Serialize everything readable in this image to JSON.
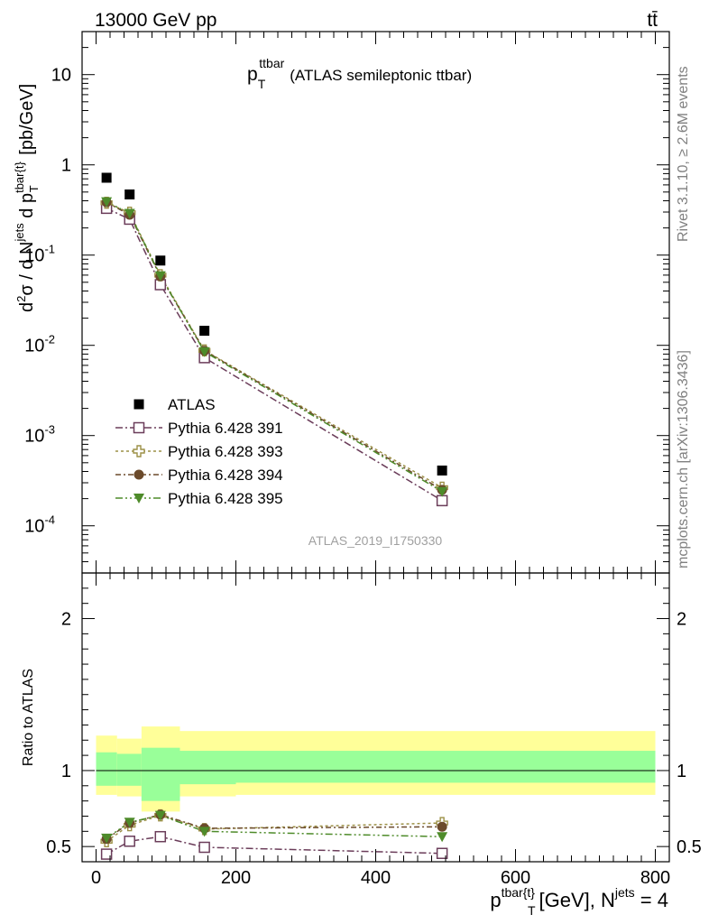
{
  "header": {
    "left": "13000 GeV pp",
    "right": "tt̄"
  },
  "side_labels": {
    "top": "Rivet 3.1.10, ≥ 2.6M events",
    "bottom": "mcplots.cern.ch [arXiv:1306.3436]"
  },
  "chart_data": {
    "type": "line",
    "title_main": "p",
    "title_sub": "T",
    "title_sup": "ttbar",
    "title_rest": "(ATLAS semileptonic ttbar)",
    "watermark": "ATLAS_2019_I1750330",
    "x_axis": {
      "label_main": "p",
      "label_sup": "tbar{t}",
      "label_sub": "T",
      "label_rest": "[GeV], N",
      "label_sup2": "jets",
      "label_end": " = 4",
      "range": [
        -20,
        820
      ],
      "ticks": [
        0,
        200,
        400,
        600,
        800
      ]
    },
    "upper": {
      "scale": "log",
      "y_range": [
        3e-05,
        30
      ],
      "y_label": "d²σ / d N^jets d p^tbar{t}_T [pb/GeV]",
      "y_ticks": [
        {
          "value": 10,
          "label": "10"
        },
        {
          "value": 1,
          "label": "1"
        },
        {
          "value": 0.1,
          "label": "10^-1"
        },
        {
          "value": 0.01,
          "label": "10^-2"
        },
        {
          "value": 0.001,
          "label": "10^-3"
        },
        {
          "value": 0.0001,
          "label": "10^-4"
        }
      ]
    },
    "lower": {
      "y_label": "Ratio to ATLAS",
      "y_range": [
        0.4,
        2.3
      ],
      "y_ticks": [
        0.5,
        1,
        2
      ],
      "band_edges": [
        0,
        30,
        65,
        120,
        200,
        800
      ],
      "band_inner": [
        [
          0.9,
          1.12
        ],
        [
          0.9,
          1.11
        ],
        [
          0.8,
          1.15
        ],
        [
          0.91,
          1.13
        ],
        [
          0.92,
          1.13
        ]
      ],
      "band_outer": [
        [
          0.84,
          1.23
        ],
        [
          0.83,
          1.21
        ],
        [
          0.73,
          1.29
        ],
        [
          0.83,
          1.26
        ],
        [
          0.84,
          1.26
        ]
      ],
      "band_colors": {
        "inner": "#99ff99",
        "outer": "#ffff99"
      }
    },
    "x": [
      15,
      48,
      92,
      155,
      495
    ],
    "data": {
      "name": "ATLAS",
      "values": [
        0.72,
        0.47,
        0.087,
        0.0145,
        0.00041
      ],
      "color": "#000000"
    },
    "series": [
      {
        "name": "Pythia 6.428 391",
        "values": [
          0.33,
          0.25,
          0.047,
          0.0073,
          0.00019
        ],
        "ratio": [
          0.45,
          0.535,
          0.565,
          0.495,
          0.455
        ],
        "ratio_err": [
          0.01,
          0.01,
          0.012,
          0.01,
          0.015
        ],
        "color": "#6b3d5a",
        "marker": "open-square",
        "dash": "8,3,2,3"
      },
      {
        "name": "Pythia 6.428 393",
        "values": [
          0.38,
          0.295,
          0.06,
          0.0088,
          0.000265
        ],
        "ratio": [
          0.535,
          0.64,
          0.705,
          0.615,
          0.655
        ],
        "ratio_err": [
          0.015,
          0.015,
          0.015,
          0.012,
          0.02
        ],
        "color": "#9c9046",
        "marker": "open-cross",
        "dash": "3,3"
      },
      {
        "name": "Pythia 6.428 394",
        "values": [
          0.385,
          0.28,
          0.058,
          0.0087,
          0.00025
        ],
        "ratio": [
          0.55,
          0.655,
          0.71,
          0.62,
          0.63
        ],
        "ratio_err": [
          0.015,
          0.015,
          0.015,
          0.012,
          0.02
        ],
        "color": "#6b4a2b",
        "marker": "filled-circle",
        "dash": "6,3,2,3"
      },
      {
        "name": "Pythia 6.428 395",
        "values": [
          0.39,
          0.29,
          0.059,
          0.0085,
          0.00024
        ],
        "ratio": [
          0.555,
          0.66,
          0.705,
          0.6,
          0.565
        ],
        "ratio_err": [
          0.015,
          0.015,
          0.015,
          0.012,
          0.02
        ],
        "color": "#4e8b2a",
        "marker": "filled-triangle-down",
        "dash": "8,3,2,3,2,3"
      }
    ]
  }
}
